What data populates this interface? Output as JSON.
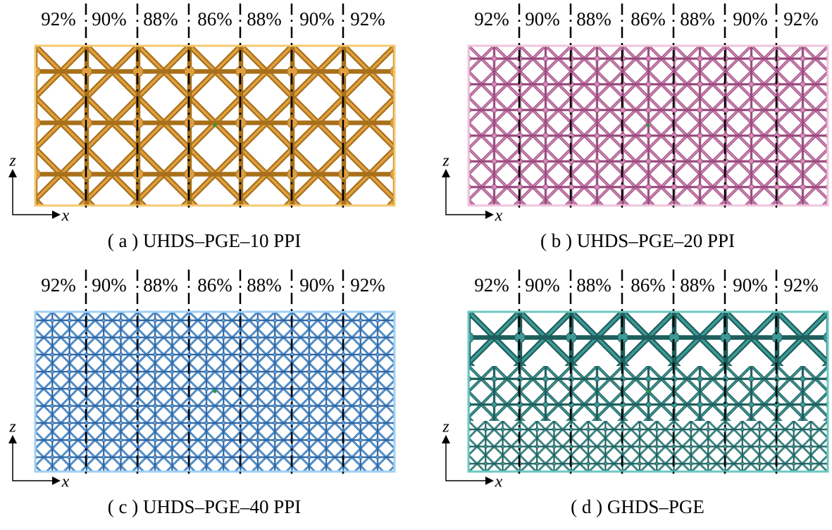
{
  "panels": [
    {
      "labels": [
        "92%",
        "90%",
        "88%",
        "86%",
        "88%",
        "90%",
        "92%"
      ],
      "axis_x": "x",
      "axis_z": "z",
      "caption": "( a ) UHDS–PGE–10 PPI"
    },
    {
      "labels": [
        "92%",
        "90%",
        "88%",
        "86%",
        "88%",
        "90%",
        "92%"
      ],
      "axis_x": "x",
      "axis_z": "z",
      "caption": "( b ) UHDS–PGE–20 PPI"
    },
    {
      "labels": [
        "92%",
        "90%",
        "88%",
        "86%",
        "88%",
        "90%",
        "92%"
      ],
      "axis_x": "x",
      "axis_z": "z",
      "caption": "( c ) UHDS–PGE–40 PPI"
    },
    {
      "labels": [
        "92%",
        "90%",
        "88%",
        "86%",
        "88%",
        "90%",
        "92%"
      ],
      "axis_x": "x",
      "axis_z": "z",
      "caption": "( d ) GHDS–PGE"
    }
  ]
}
